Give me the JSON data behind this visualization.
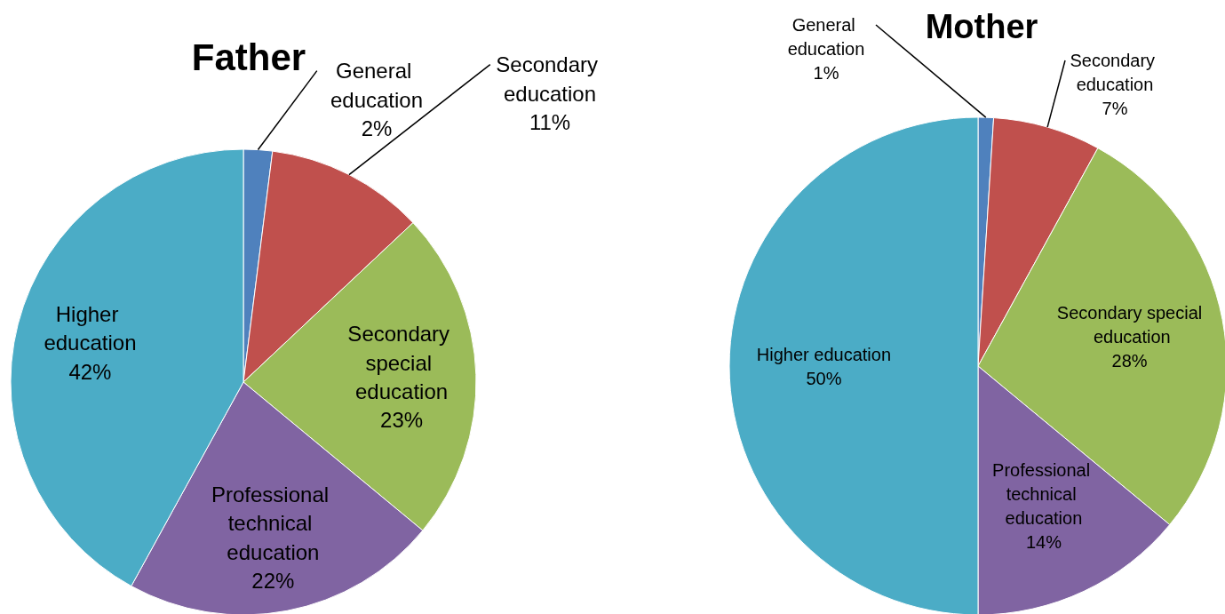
{
  "chart_data": [
    {
      "type": "pie",
      "title": "Father",
      "categories": [
        "General education",
        "Secondary education",
        "Secondary special education",
        "Professional technical education",
        "Higher education"
      ],
      "values": [
        2,
        11,
        23,
        22,
        42
      ],
      "value_labels": [
        "2%",
        "11%",
        "23%",
        "22%",
        "42%"
      ],
      "data_labels": true,
      "colors": [
        "#4f81bd",
        "#c0504d",
        "#9bbb59",
        "#8064a2",
        "#4bacc6"
      ],
      "legend": false
    },
    {
      "type": "pie",
      "title": "Mother",
      "categories": [
        "General education",
        "Secondary education",
        "Secondary special education",
        "Professional technical education",
        "Higher education"
      ],
      "values": [
        1,
        7,
        28,
        14,
        50
      ],
      "value_labels": [
        "1%",
        "7%",
        "28%",
        "14%",
        "50%"
      ],
      "data_labels": true,
      "colors": [
        "#4f81bd",
        "#c0504d",
        "#9bbb59",
        "#8064a2",
        "#4bacc6"
      ],
      "legend": false
    }
  ]
}
